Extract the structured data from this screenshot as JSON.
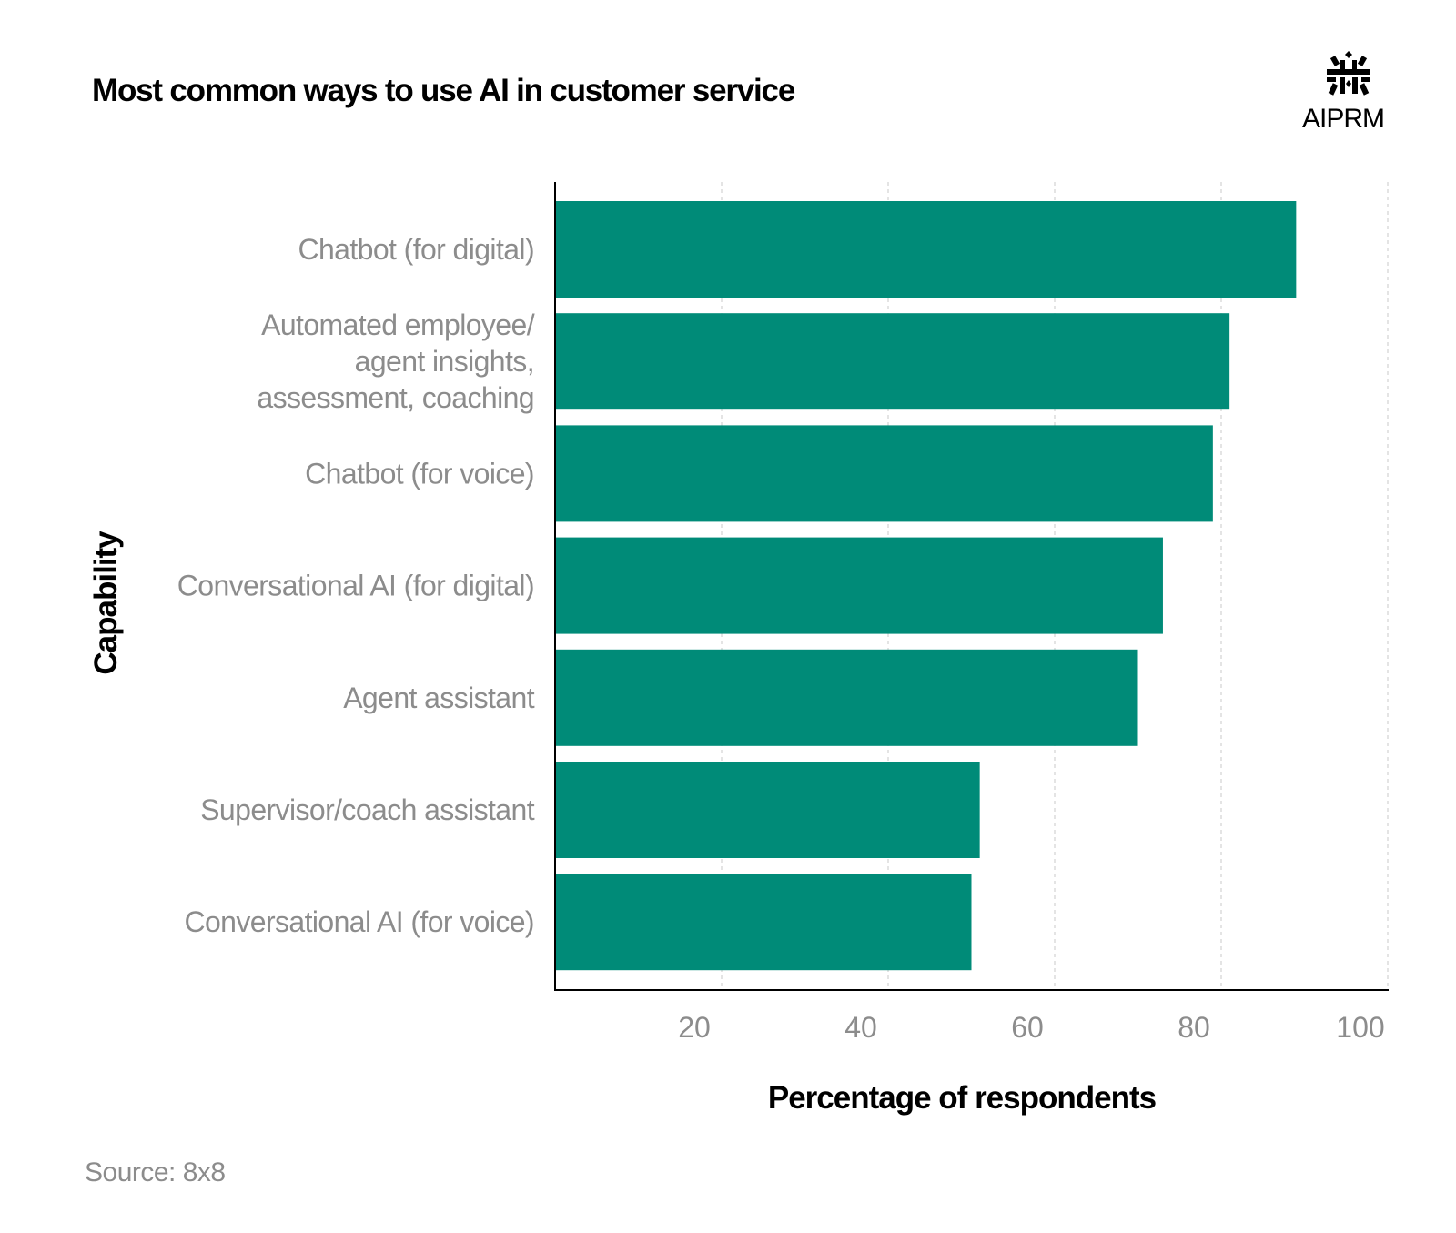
{
  "header": {
    "title": "Most common ways to use AI in customer service",
    "logo_text": "AIPRM",
    "logo_icon": "aiprm-logo-icon"
  },
  "footer": {
    "source_label": "Source:",
    "source_value": "8x8"
  },
  "colors": {
    "bar": "#008b78",
    "grid": "#d2d2d2",
    "axis": "#000000",
    "label": "#8c8c8c"
  },
  "chart_data": {
    "type": "bar",
    "orientation": "horizontal",
    "title": "Most common ways to use AI in customer service",
    "xlabel": "Percentage of respondents",
    "ylabel": "Capability",
    "categories": [
      [
        "Chatbot (for digital)"
      ],
      [
        "Automated employee/",
        "agent insights,",
        "assessment, coaching"
      ],
      [
        "Chatbot (for voice)"
      ],
      [
        "Conversational AI (for digital)"
      ],
      [
        "Agent assistant"
      ],
      [
        "Supervisor/coach assistant"
      ],
      [
        "Conversational AI (for voice)"
      ]
    ],
    "values": [
      89,
      81,
      79,
      73,
      70,
      51,
      50
    ],
    "xlim": [
      0,
      100
    ],
    "xticks": [
      20,
      40,
      60,
      80,
      100
    ],
    "grid": "vertical dashed",
    "legend": "none"
  }
}
